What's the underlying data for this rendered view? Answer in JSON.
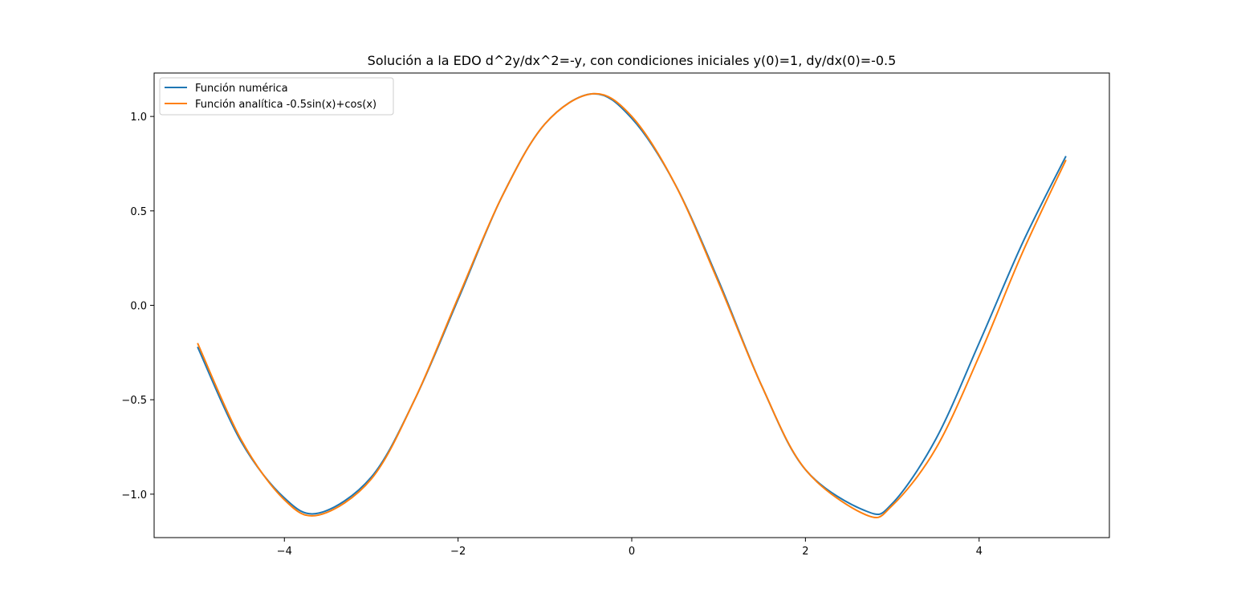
{
  "chart_data": {
    "type": "line",
    "title": "Solución a la EDO d^2y/dx^2=-y, con condiciones iniciales y(0)=1, dy/dx(0)=-0.5",
    "xlabel": "",
    "ylabel": "",
    "xlim": [
      -5.5,
      5.5
    ],
    "ylim": [
      -1.23,
      1.23
    ],
    "xticks": [
      -4,
      -2,
      0,
      2,
      4
    ],
    "xtick_labels": [
      "−4",
      "−2",
      "0",
      "2",
      "4"
    ],
    "yticks": [
      -1.0,
      -0.5,
      0.0,
      0.5,
      1.0
    ],
    "ytick_labels": [
      "−1.0",
      "−0.5",
      "0.0",
      "0.5",
      "1.0"
    ],
    "grid": false,
    "legend": "top-left",
    "series": [
      {
        "name": "Función numérica",
        "color": "#1f77b4",
        "x": [
          -5.0,
          -4.5,
          -4.0,
          -3.6,
          -3.0,
          -2.5,
          -2.0,
          -1.5,
          -1.0,
          -0.45,
          0.0,
          0.5,
          1.0,
          1.5,
          2.0,
          2.7,
          3.0,
          3.5,
          4.0,
          4.5,
          5.0
        ],
        "y": [
          -0.22,
          -0.72,
          -1.02,
          -1.1,
          -0.91,
          -0.5,
          0.03,
          0.57,
          0.96,
          1.12,
          0.99,
          0.64,
          0.13,
          -0.43,
          -0.87,
          -1.09,
          -1.05,
          -0.71,
          -0.2,
          0.33,
          0.79
        ]
      },
      {
        "name": "Función analítica -0.5sin(x)+cos(x)",
        "color": "#ff7f0e",
        "x": [
          -5.0,
          -4.5,
          -4.0,
          -3.6,
          -3.0,
          -2.5,
          -2.0,
          -1.5,
          -1.0,
          -0.45,
          0.0,
          0.5,
          1.0,
          1.5,
          2.0,
          2.7,
          3.0,
          3.5,
          4.0,
          4.5,
          5.0
        ],
        "y": [
          -0.2,
          -0.71,
          -1.03,
          -1.11,
          -0.92,
          -0.5,
          0.04,
          0.57,
          0.96,
          1.12,
          1.0,
          0.64,
          0.12,
          -0.43,
          -0.87,
          -1.11,
          -1.06,
          -0.76,
          -0.27,
          0.28,
          0.77
        ]
      }
    ]
  }
}
